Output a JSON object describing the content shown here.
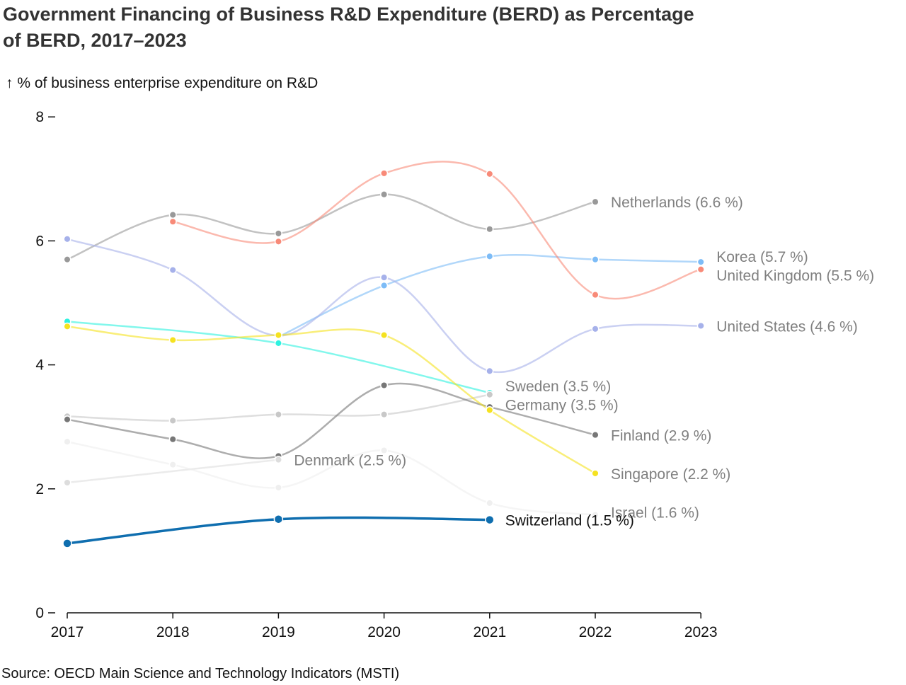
{
  "page": {
    "title": "Government Financing of Business R&D Expenditure (BERD) as Percentage of BERD, 2017–2023",
    "ylabel": "↑ % of business enterprise expenditure on R&D",
    "source": "Source: OECD Main Science and Technology Indicators (MSTI)"
  },
  "chart_data": {
    "type": "line",
    "title": "Government Financing of Business R&D Expenditure (BERD) as Percentage of BERD, 2017–2023",
    "xlabel": "",
    "ylabel": "↑ % of business enterprise expenditure on R&D",
    "x": [
      2017,
      2018,
      2019,
      2020,
      2021,
      2022,
      2023
    ],
    "xticks": [
      "2017",
      "2018",
      "2019",
      "2020",
      "2021",
      "2022",
      "2023"
    ],
    "yticks": [
      "0",
      "2",
      "4",
      "6",
      "8"
    ],
    "ylim": [
      0,
      8
    ],
    "grid": false,
    "series": [
      {
        "name": "Netherlands",
        "label": "Netherlands (6.6 %)",
        "color": "#999999",
        "values": [
          5.7,
          6.42,
          6.12,
          6.75,
          6.19,
          6.63,
          null
        ]
      },
      {
        "name": "Korea",
        "label": "Korea (5.7 %)",
        "color": "#7dbcf7",
        "values": [
          null,
          null,
          4.45,
          5.28,
          5.75,
          5.7,
          5.66
        ]
      },
      {
        "name": "United Kingdom",
        "label": "United Kingdom (5.5 %)",
        "color": "#f88a78",
        "values": [
          null,
          6.31,
          5.99,
          7.09,
          7.08,
          5.13,
          5.54
        ]
      },
      {
        "name": "United States",
        "label": "United States (4.6 %)",
        "color": "#a6b1ea",
        "values": [
          6.03,
          5.53,
          4.47,
          5.41,
          3.9,
          4.58,
          4.63
        ]
      },
      {
        "name": "Sweden",
        "label": "Sweden (3.5 %)",
        "color": "#2ef2e0",
        "values": [
          4.7,
          null,
          4.35,
          null,
          3.55,
          null,
          null
        ]
      },
      {
        "name": "Germany",
        "label": "Germany (3.5 %)",
        "color": "#c8c8c8",
        "values": [
          3.17,
          3.1,
          3.2,
          3.2,
          3.52,
          null,
          null
        ]
      },
      {
        "name": "Finland",
        "label": "Finland (2.9 %)",
        "color": "#777777",
        "values": [
          3.12,
          2.8,
          2.53,
          3.67,
          3.32,
          2.87,
          null
        ]
      },
      {
        "name": "Singapore",
        "label": "Singapore (2.2 %)",
        "color": "#f5e220",
        "values": [
          4.62,
          4.4,
          4.48,
          4.48,
          3.27,
          2.25,
          null
        ]
      },
      {
        "name": "Denmark",
        "label": "Denmark (2.5 %)",
        "color": "#dddddd",
        "values": [
          2.1,
          null,
          2.47,
          null,
          null,
          null,
          null
        ]
      },
      {
        "name": "Israel",
        "label": "Israel (1.6 %)",
        "color": "#efefef",
        "values": [
          2.76,
          2.39,
          2.02,
          2.62,
          1.77,
          1.58,
          null
        ]
      },
      {
        "name": "Switzerland",
        "label": "Switzerland (1.5 %)",
        "color": "#0f6eaf",
        "highlight": true,
        "values": [
          1.12,
          null,
          1.51,
          null,
          1.5,
          null,
          null
        ]
      }
    ]
  }
}
